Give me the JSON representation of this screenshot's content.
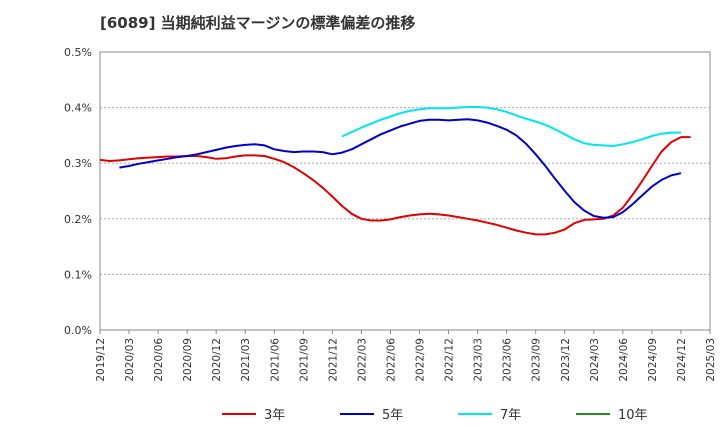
{
  "chart_data": {
    "type": "line",
    "title": "[6089]  当期純利益マージンの標準偏差の推移",
    "xlabel": "",
    "ylabel": "",
    "ylim": [
      0,
      0.5
    ],
    "y_ticks": [
      "0.0%",
      "0.1%",
      "0.2%",
      "0.3%",
      "0.4%",
      "0.5%"
    ],
    "x_ticks": [
      "2019/12",
      "2020/03",
      "2020/06",
      "2020/09",
      "2020/12",
      "2021/03",
      "2021/06",
      "2021/09",
      "2021/12",
      "2022/03",
      "2022/06",
      "2022/09",
      "2022/12",
      "2023/03",
      "2023/06",
      "2023/09",
      "2023/12",
      "2024/03",
      "2024/06",
      "2024/09",
      "2024/12",
      "2025/03"
    ],
    "grid": "horizontal dashed",
    "legend_position": "bottom",
    "series": [
      {
        "name": "3年",
        "color": "#e00000",
        "points": [
          [
            "2019/12",
            0.306
          ],
          [
            "2020/01",
            0.304
          ],
          [
            "2020/02",
            0.305
          ],
          [
            "2020/03",
            0.307
          ],
          [
            "2020/04",
            0.309
          ],
          [
            "2020/05",
            0.31
          ],
          [
            "2020/06",
            0.311
          ],
          [
            "2020/07",
            0.312
          ],
          [
            "2020/08",
            0.312
          ],
          [
            "2020/09",
            0.313
          ],
          [
            "2020/10",
            0.313
          ],
          [
            "2020/11",
            0.311
          ],
          [
            "2020/12",
            0.308
          ],
          [
            "2021/01",
            0.309
          ],
          [
            "2021/02",
            0.312
          ],
          [
            "2021/03",
            0.314
          ],
          [
            "2021/04",
            0.314
          ],
          [
            "2021/05",
            0.313
          ],
          [
            "2021/06",
            0.308
          ],
          [
            "2021/07",
            0.302
          ],
          [
            "2021/08",
            0.293
          ],
          [
            "2021/09",
            0.282
          ],
          [
            "2021/10",
            0.27
          ],
          [
            "2021/11",
            0.256
          ],
          [
            "2021/12",
            0.24
          ],
          [
            "2022/01",
            0.223
          ],
          [
            "2022/02",
            0.209
          ],
          [
            "2022/03",
            0.2
          ],
          [
            "2022/04",
            0.197
          ],
          [
            "2022/05",
            0.197
          ],
          [
            "2022/06",
            0.199
          ],
          [
            "2022/07",
            0.203
          ],
          [
            "2022/08",
            0.206
          ],
          [
            "2022/09",
            0.208
          ],
          [
            "2022/10",
            0.209
          ],
          [
            "2022/11",
            0.208
          ],
          [
            "2022/12",
            0.206
          ],
          [
            "2023/01",
            0.203
          ],
          [
            "2023/02",
            0.2
          ],
          [
            "2023/03",
            0.197
          ],
          [
            "2023/04",
            0.193
          ],
          [
            "2023/05",
            0.189
          ],
          [
            "2023/06",
            0.184
          ],
          [
            "2023/07",
            0.179
          ],
          [
            "2023/08",
            0.175
          ],
          [
            "2023/09",
            0.172
          ],
          [
            "2023/10",
            0.172
          ],
          [
            "2023/11",
            0.175
          ],
          [
            "2023/12",
            0.181
          ],
          [
            "2024/01",
            0.192
          ],
          [
            "2024/02",
            0.198
          ],
          [
            "2024/03",
            0.199
          ],
          [
            "2024/04",
            0.2
          ],
          [
            "2024/05",
            0.206
          ],
          [
            "2024/06",
            0.22
          ],
          [
            "2024/07",
            0.243
          ],
          [
            "2024/08",
            0.268
          ],
          [
            "2024/09",
            0.295
          ],
          [
            "2024/10",
            0.321
          ],
          [
            "2024/11",
            0.338
          ],
          [
            "2024/12",
            0.347
          ],
          [
            "2025/01",
            0.347
          ]
        ]
      },
      {
        "name": "5年",
        "color": "#0000cc",
        "points": [
          [
            "2020/02",
            0.292
          ],
          [
            "2020/03",
            0.295
          ],
          [
            "2020/04",
            0.299
          ],
          [
            "2020/05",
            0.302
          ],
          [
            "2020/06",
            0.305
          ],
          [
            "2020/07",
            0.308
          ],
          [
            "2020/08",
            0.311
          ],
          [
            "2020/09",
            0.313
          ],
          [
            "2020/10",
            0.316
          ],
          [
            "2020/11",
            0.32
          ],
          [
            "2020/12",
            0.324
          ],
          [
            "2021/01",
            0.328
          ],
          [
            "2021/02",
            0.331
          ],
          [
            "2021/03",
            0.333
          ],
          [
            "2021/04",
            0.334
          ],
          [
            "2021/05",
            0.332
          ],
          [
            "2021/06",
            0.325
          ],
          [
            "2021/07",
            0.322
          ],
          [
            "2021/08",
            0.32
          ],
          [
            "2021/09",
            0.321
          ],
          [
            "2021/10",
            0.321
          ],
          [
            "2021/11",
            0.32
          ],
          [
            "2021/12",
            0.316
          ],
          [
            "2022/01",
            0.319
          ],
          [
            "2022/02",
            0.325
          ],
          [
            "2022/03",
            0.334
          ],
          [
            "2022/04",
            0.343
          ],
          [
            "2022/05",
            0.352
          ],
          [
            "2022/06",
            0.359
          ],
          [
            "2022/07",
            0.366
          ],
          [
            "2022/08",
            0.371
          ],
          [
            "2022/09",
            0.376
          ],
          [
            "2022/10",
            0.378
          ],
          [
            "2022/11",
            0.378
          ],
          [
            "2022/12",
            0.377
          ],
          [
            "2023/01",
            0.378
          ],
          [
            "2023/02",
            0.379
          ],
          [
            "2023/03",
            0.377
          ],
          [
            "2023/04",
            0.373
          ],
          [
            "2023/05",
            0.367
          ],
          [
            "2023/06",
            0.36
          ],
          [
            "2023/07",
            0.35
          ],
          [
            "2023/08",
            0.335
          ],
          [
            "2023/09",
            0.316
          ],
          [
            "2023/10",
            0.295
          ],
          [
            "2023/11",
            0.272
          ],
          [
            "2023/12",
            0.25
          ],
          [
            "2024/01",
            0.23
          ],
          [
            "2024/02",
            0.215
          ],
          [
            "2024/03",
            0.205
          ],
          [
            "2024/04",
            0.202
          ],
          [
            "2024/05",
            0.203
          ],
          [
            "2024/06",
            0.212
          ],
          [
            "2024/07",
            0.226
          ],
          [
            "2024/08",
            0.242
          ],
          [
            "2024/09",
            0.258
          ],
          [
            "2024/10",
            0.27
          ],
          [
            "2024/11",
            0.278
          ],
          [
            "2024/12",
            0.282
          ]
        ]
      },
      {
        "name": "7年",
        "color": "#00e5ee",
        "points": [
          [
            "2022/01",
            0.348
          ],
          [
            "2022/02",
            0.356
          ],
          [
            "2022/03",
            0.364
          ],
          [
            "2022/04",
            0.371
          ],
          [
            "2022/05",
            0.378
          ],
          [
            "2022/06",
            0.384
          ],
          [
            "2022/07",
            0.39
          ],
          [
            "2022/08",
            0.394
          ],
          [
            "2022/09",
            0.397
          ],
          [
            "2022/10",
            0.399
          ],
          [
            "2022/11",
            0.399
          ],
          [
            "2022/12",
            0.399
          ],
          [
            "2023/01",
            0.4
          ],
          [
            "2023/02",
            0.401
          ],
          [
            "2023/03",
            0.401
          ],
          [
            "2023/04",
            0.4
          ],
          [
            "2023/05",
            0.397
          ],
          [
            "2023/06",
            0.392
          ],
          [
            "2023/07",
            0.386
          ],
          [
            "2023/08",
            0.38
          ],
          [
            "2023/09",
            0.375
          ],
          [
            "2023/10",
            0.369
          ],
          [
            "2023/11",
            0.361
          ],
          [
            "2023/12",
            0.352
          ],
          [
            "2024/01",
            0.343
          ],
          [
            "2024/02",
            0.336
          ],
          [
            "2024/03",
            0.333
          ],
          [
            "2024/04",
            0.332
          ],
          [
            "2024/05",
            0.331
          ],
          [
            "2024/06",
            0.334
          ],
          [
            "2024/07",
            0.338
          ],
          [
            "2024/08",
            0.343
          ],
          [
            "2024/09",
            0.349
          ],
          [
            "2024/10",
            0.353
          ],
          [
            "2024/11",
            0.355
          ],
          [
            "2024/12",
            0.355
          ]
        ]
      },
      {
        "name": "10年",
        "color": "#228b22",
        "points": []
      }
    ]
  }
}
